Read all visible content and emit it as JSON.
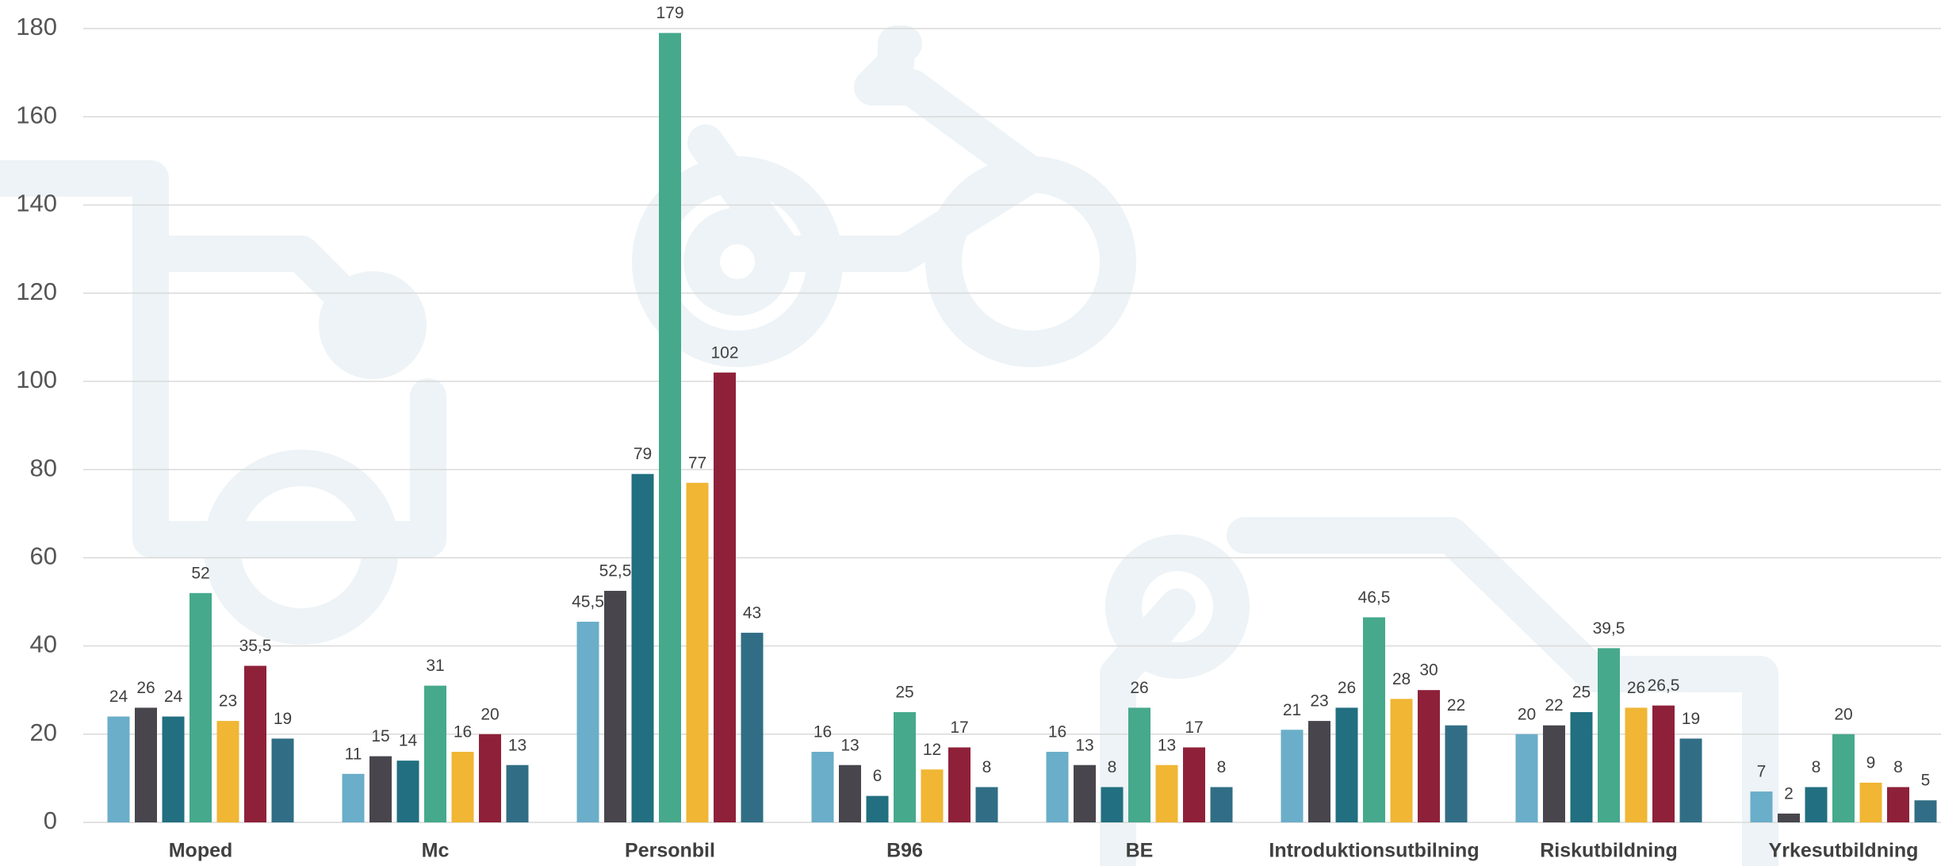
{
  "chart_data": {
    "type": "bar",
    "categories": [
      "Moped",
      "Mc",
      "Personbil",
      "B96",
      "BE",
      "Introduktionsutbilning",
      "Riskutbildning",
      "Yrkesutbildning"
    ],
    "series": [
      {
        "color": "#6aaec9",
        "values": [
          24,
          11,
          45.5,
          16,
          16,
          21,
          20,
          7
        ],
        "value_labels": [
          "24",
          "11",
          "45,5",
          "16",
          "16",
          "21",
          "20",
          "7"
        ]
      },
      {
        "color": "#48464c",
        "values": [
          26,
          15,
          52.5,
          13,
          13,
          23,
          22,
          2
        ],
        "value_labels": [
          "26",
          "15",
          "52,5",
          "13",
          "13",
          "23",
          "22",
          "2"
        ]
      },
      {
        "color": "#216f80",
        "values": [
          24,
          14,
          79,
          6,
          8,
          26,
          25,
          8
        ],
        "value_labels": [
          "24",
          "14",
          "79",
          "6",
          "8",
          "26",
          "25",
          "8"
        ]
      },
      {
        "color": "#46a98c",
        "values": [
          52,
          31,
          179,
          25,
          26,
          46.5,
          39.5,
          20
        ],
        "value_labels": [
          "52",
          "31",
          "179",
          "25",
          "26",
          "46,5",
          "39,5",
          "20"
        ]
      },
      {
        "color": "#f0b634",
        "values": [
          23,
          16,
          77,
          12,
          13,
          28,
          26,
          9
        ],
        "value_labels": [
          "23",
          "16",
          "77",
          "12",
          "13",
          "28",
          "26",
          "9"
        ]
      },
      {
        "color": "#8e2139",
        "values": [
          35.5,
          20,
          102,
          17,
          17,
          30,
          26.5,
          8
        ],
        "value_labels": [
          "35,5",
          "20",
          "102",
          "17",
          "17",
          "30",
          "26,5",
          "8"
        ]
      },
      {
        "color": "#316e85",
        "values": [
          19,
          13,
          43,
          8,
          8,
          22,
          19,
          5
        ],
        "value_labels": [
          "19",
          "13",
          "43",
          "8",
          "8",
          "22",
          "19",
          "5"
        ]
      }
    ],
    "ylim": [
      0,
      180
    ],
    "yticks": [
      0,
      20,
      40,
      60,
      80,
      100,
      120,
      140,
      160,
      180
    ],
    "grid": true
  }
}
